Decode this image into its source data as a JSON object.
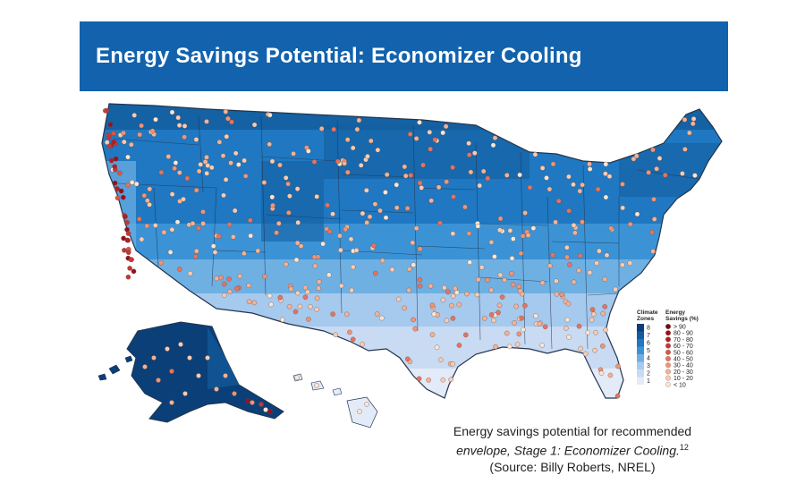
{
  "header": {
    "title": "Energy Savings Potential: Economizer Cooling"
  },
  "legend": {
    "climate_title_1": "Climate",
    "climate_title_2": "Zones",
    "climate_zones": [
      {
        "label": "8",
        "color": "#0b3f78"
      },
      {
        "label": "7",
        "color": "#135d9e"
      },
      {
        "label": "6",
        "color": "#1f78c1"
      },
      {
        "label": "5",
        "color": "#3b93d6"
      },
      {
        "label": "4",
        "color": "#6fb0e3"
      },
      {
        "label": "3",
        "color": "#a6c9ee"
      },
      {
        "label": "2",
        "color": "#c9daf3"
      },
      {
        "label": "1",
        "color": "#e4ebf8"
      }
    ],
    "savings_title_1": "Energy",
    "savings_title_2": "Savings (%)",
    "savings_classes": [
      {
        "label": "> 90",
        "color": "#7a0a14"
      },
      {
        "label": "80 - 90",
        "color": "#96101c"
      },
      {
        "label": "70 - 80",
        "color": "#b31c26"
      },
      {
        "label": "60 - 70",
        "color": "#c93536"
      },
      {
        "label": "50 - 60",
        "color": "#db5448"
      },
      {
        "label": "40 - 50",
        "color": "#e6735f"
      },
      {
        "label": "30 - 40",
        "color": "#ee9479"
      },
      {
        "label": "20 - 30",
        "color": "#f3b295"
      },
      {
        "label": "10 - 20",
        "color": "#f6ccb4"
      },
      {
        "label": "< 10",
        "color": "#f8e6d8"
      }
    ]
  },
  "caption": {
    "line1": "Energy savings potential for recommended",
    "line2": "envelope, Stage 1: Economizer Cooling.",
    "footnote": "12",
    "line3": "(Source: Billy Roberts, NREL)"
  }
}
